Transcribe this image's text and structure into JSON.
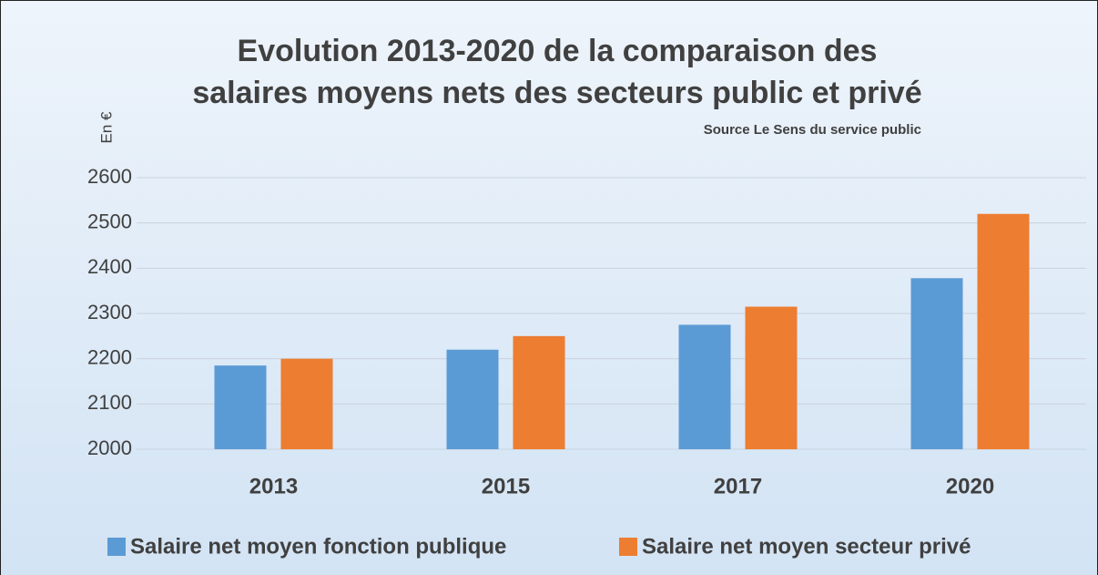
{
  "chart_data": {
    "type": "bar",
    "title": [
      "Evolution 2013-2020 de la comparaison des",
      "salaires moyens nets des secteurs public et privé"
    ],
    "subtitle": "Source Le Sens du service public",
    "y_label": "En €",
    "categories": [
      "2013",
      "2015",
      "2017",
      "2020"
    ],
    "series": [
      {
        "name": "Salaire net moyen fonction publique",
        "color": "#5b9bd5",
        "values": [
          2185,
          2220,
          2275,
          2378
        ]
      },
      {
        "name": "Salaire net moyen secteur privé",
        "color": "#ed7d31",
        "values": [
          2200,
          2250,
          2315,
          2520
        ]
      }
    ],
    "ylim": [
      2000,
      2600
    ],
    "yticks": [
      2000,
      2100,
      2200,
      2300,
      2400,
      2500,
      2600
    ],
    "grid": true,
    "legend": "bottom"
  }
}
